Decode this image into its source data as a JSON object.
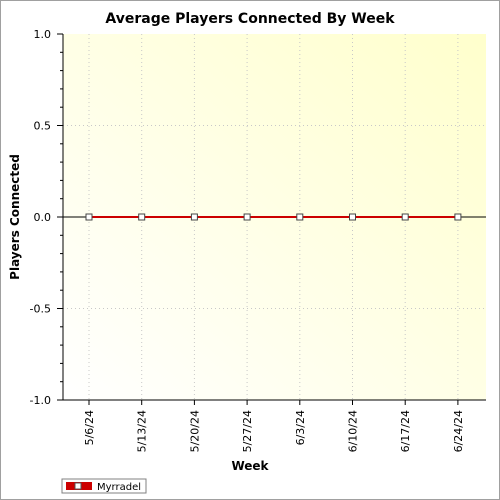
{
  "chart_data": {
    "type": "line",
    "title": "Average Players Connected By Week",
    "xlabel": "Week",
    "ylabel": "Players Connected",
    "categories": [
      "5/6/24",
      "5/13/24",
      "5/20/24",
      "5/27/24",
      "6/3/24",
      "6/10/24",
      "6/17/24",
      "6/24/24"
    ],
    "series": [
      {
        "name": "Myrradel",
        "values": [
          0,
          0,
          0,
          0,
          0,
          0,
          0,
          0
        ],
        "color": "#cc0000"
      }
    ],
    "ylim": [
      -1.0,
      1.0
    ],
    "yticks": [
      "1.0",
      "0.5",
      "0.0",
      "-0.5",
      "-1.0"
    ],
    "grid": true,
    "legend_position": "bottom-left",
    "background_gradient": [
      "#ffffff",
      "#ffffcc"
    ]
  }
}
